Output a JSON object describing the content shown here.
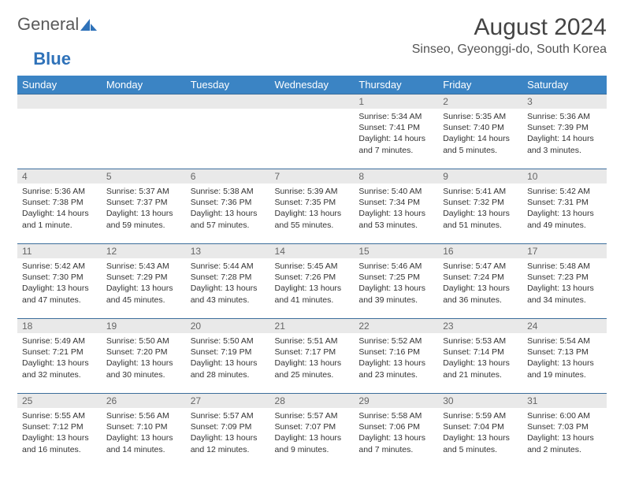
{
  "logo": {
    "text1": "General",
    "text2": "Blue"
  },
  "title": "August 2024",
  "location": "Sinseo, Gyeonggi-do, South Korea",
  "colors": {
    "header_bg": "#3b84c4",
    "header_text": "#ffffff",
    "daynum_bg": "#e9e9e9",
    "border": "#3b6d9b",
    "logo_accent": "#2f72b9"
  },
  "weekdays": [
    "Sunday",
    "Monday",
    "Tuesday",
    "Wednesday",
    "Thursday",
    "Friday",
    "Saturday"
  ],
  "weeks": [
    [
      null,
      null,
      null,
      null,
      {
        "n": "1",
        "sr": "5:34 AM",
        "ss": "7:41 PM",
        "dl": "14 hours and 7 minutes."
      },
      {
        "n": "2",
        "sr": "5:35 AM",
        "ss": "7:40 PM",
        "dl": "14 hours and 5 minutes."
      },
      {
        "n": "3",
        "sr": "5:36 AM",
        "ss": "7:39 PM",
        "dl": "14 hours and 3 minutes."
      }
    ],
    [
      {
        "n": "4",
        "sr": "5:36 AM",
        "ss": "7:38 PM",
        "dl": "14 hours and 1 minute."
      },
      {
        "n": "5",
        "sr": "5:37 AM",
        "ss": "7:37 PM",
        "dl": "13 hours and 59 minutes."
      },
      {
        "n": "6",
        "sr": "5:38 AM",
        "ss": "7:36 PM",
        "dl": "13 hours and 57 minutes."
      },
      {
        "n": "7",
        "sr": "5:39 AM",
        "ss": "7:35 PM",
        "dl": "13 hours and 55 minutes."
      },
      {
        "n": "8",
        "sr": "5:40 AM",
        "ss": "7:34 PM",
        "dl": "13 hours and 53 minutes."
      },
      {
        "n": "9",
        "sr": "5:41 AM",
        "ss": "7:32 PM",
        "dl": "13 hours and 51 minutes."
      },
      {
        "n": "10",
        "sr": "5:42 AM",
        "ss": "7:31 PM",
        "dl": "13 hours and 49 minutes."
      }
    ],
    [
      {
        "n": "11",
        "sr": "5:42 AM",
        "ss": "7:30 PM",
        "dl": "13 hours and 47 minutes."
      },
      {
        "n": "12",
        "sr": "5:43 AM",
        "ss": "7:29 PM",
        "dl": "13 hours and 45 minutes."
      },
      {
        "n": "13",
        "sr": "5:44 AM",
        "ss": "7:28 PM",
        "dl": "13 hours and 43 minutes."
      },
      {
        "n": "14",
        "sr": "5:45 AM",
        "ss": "7:26 PM",
        "dl": "13 hours and 41 minutes."
      },
      {
        "n": "15",
        "sr": "5:46 AM",
        "ss": "7:25 PM",
        "dl": "13 hours and 39 minutes."
      },
      {
        "n": "16",
        "sr": "5:47 AM",
        "ss": "7:24 PM",
        "dl": "13 hours and 36 minutes."
      },
      {
        "n": "17",
        "sr": "5:48 AM",
        "ss": "7:23 PM",
        "dl": "13 hours and 34 minutes."
      }
    ],
    [
      {
        "n": "18",
        "sr": "5:49 AM",
        "ss": "7:21 PM",
        "dl": "13 hours and 32 minutes."
      },
      {
        "n": "19",
        "sr": "5:50 AM",
        "ss": "7:20 PM",
        "dl": "13 hours and 30 minutes."
      },
      {
        "n": "20",
        "sr": "5:50 AM",
        "ss": "7:19 PM",
        "dl": "13 hours and 28 minutes."
      },
      {
        "n": "21",
        "sr": "5:51 AM",
        "ss": "7:17 PM",
        "dl": "13 hours and 25 minutes."
      },
      {
        "n": "22",
        "sr": "5:52 AM",
        "ss": "7:16 PM",
        "dl": "13 hours and 23 minutes."
      },
      {
        "n": "23",
        "sr": "5:53 AM",
        "ss": "7:14 PM",
        "dl": "13 hours and 21 minutes."
      },
      {
        "n": "24",
        "sr": "5:54 AM",
        "ss": "7:13 PM",
        "dl": "13 hours and 19 minutes."
      }
    ],
    [
      {
        "n": "25",
        "sr": "5:55 AM",
        "ss": "7:12 PM",
        "dl": "13 hours and 16 minutes."
      },
      {
        "n": "26",
        "sr": "5:56 AM",
        "ss": "7:10 PM",
        "dl": "13 hours and 14 minutes."
      },
      {
        "n": "27",
        "sr": "5:57 AM",
        "ss": "7:09 PM",
        "dl": "13 hours and 12 minutes."
      },
      {
        "n": "28",
        "sr": "5:57 AM",
        "ss": "7:07 PM",
        "dl": "13 hours and 9 minutes."
      },
      {
        "n": "29",
        "sr": "5:58 AM",
        "ss": "7:06 PM",
        "dl": "13 hours and 7 minutes."
      },
      {
        "n": "30",
        "sr": "5:59 AM",
        "ss": "7:04 PM",
        "dl": "13 hours and 5 minutes."
      },
      {
        "n": "31",
        "sr": "6:00 AM",
        "ss": "7:03 PM",
        "dl": "13 hours and 2 minutes."
      }
    ]
  ],
  "labels": {
    "sunrise": "Sunrise: ",
    "sunset": "Sunset: ",
    "daylight": "Daylight: "
  }
}
